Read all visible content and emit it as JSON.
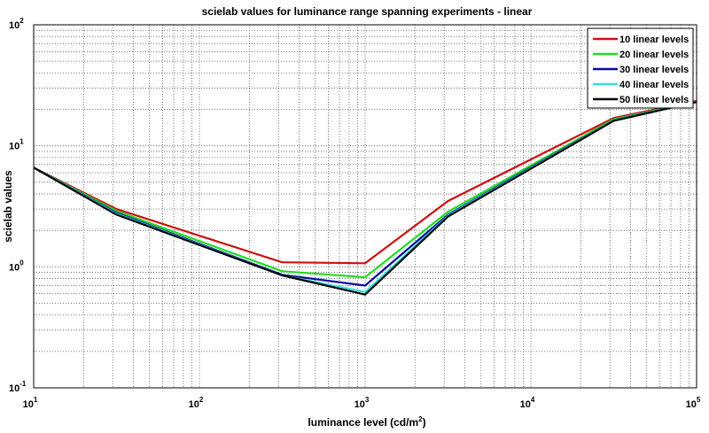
{
  "chart_data": {
    "type": "line",
    "title": "scielab values for luminance range spanning experiments - linear",
    "xlabel": "luminance level (cd/m²)",
    "ylabel": "scielab values",
    "xscale": "log",
    "yscale": "log",
    "xlim": [
      10,
      100000
    ],
    "ylim": [
      0.1,
      100
    ],
    "grid": true,
    "legend_position": "top-right",
    "x_ticks": [
      {
        "base": "10",
        "exp": "1"
      },
      {
        "base": "10",
        "exp": "2"
      },
      {
        "base": "10",
        "exp": "3"
      },
      {
        "base": "10",
        "exp": "4"
      },
      {
        "base": "10",
        "exp": "5"
      }
    ],
    "y_ticks": [
      {
        "base": "10",
        "exp": "-1"
      },
      {
        "base": "10",
        "exp": "0"
      },
      {
        "base": "10",
        "exp": "1"
      },
      {
        "base": "10",
        "exp": "2"
      }
    ],
    "x": [
      10,
      31.6,
      316,
      1000,
      3162,
      31623,
      100000
    ],
    "series": [
      {
        "name": "10 linear levels",
        "color": "#cc1010",
        "values": [
          6.6,
          3.0,
          1.09,
          1.07,
          3.5,
          17.0,
          23.5
        ]
      },
      {
        "name": "20 linear levels",
        "color": "#22dd22",
        "values": [
          6.6,
          2.9,
          0.92,
          0.82,
          2.85,
          16.6,
          23.3
        ]
      },
      {
        "name": "30 linear levels",
        "color": "#0a0aa0",
        "values": [
          6.6,
          2.8,
          0.86,
          0.7,
          2.7,
          16.3,
          23.2
        ]
      },
      {
        "name": "40 linear levels",
        "color": "#33e0e0",
        "values": [
          6.6,
          2.75,
          0.85,
          0.62,
          2.65,
          16.2,
          23.1
        ]
      },
      {
        "name": "50 linear levels",
        "color": "#000000",
        "values": [
          6.6,
          2.7,
          0.85,
          0.59,
          2.6,
          16.1,
          23.0
        ]
      }
    ]
  }
}
